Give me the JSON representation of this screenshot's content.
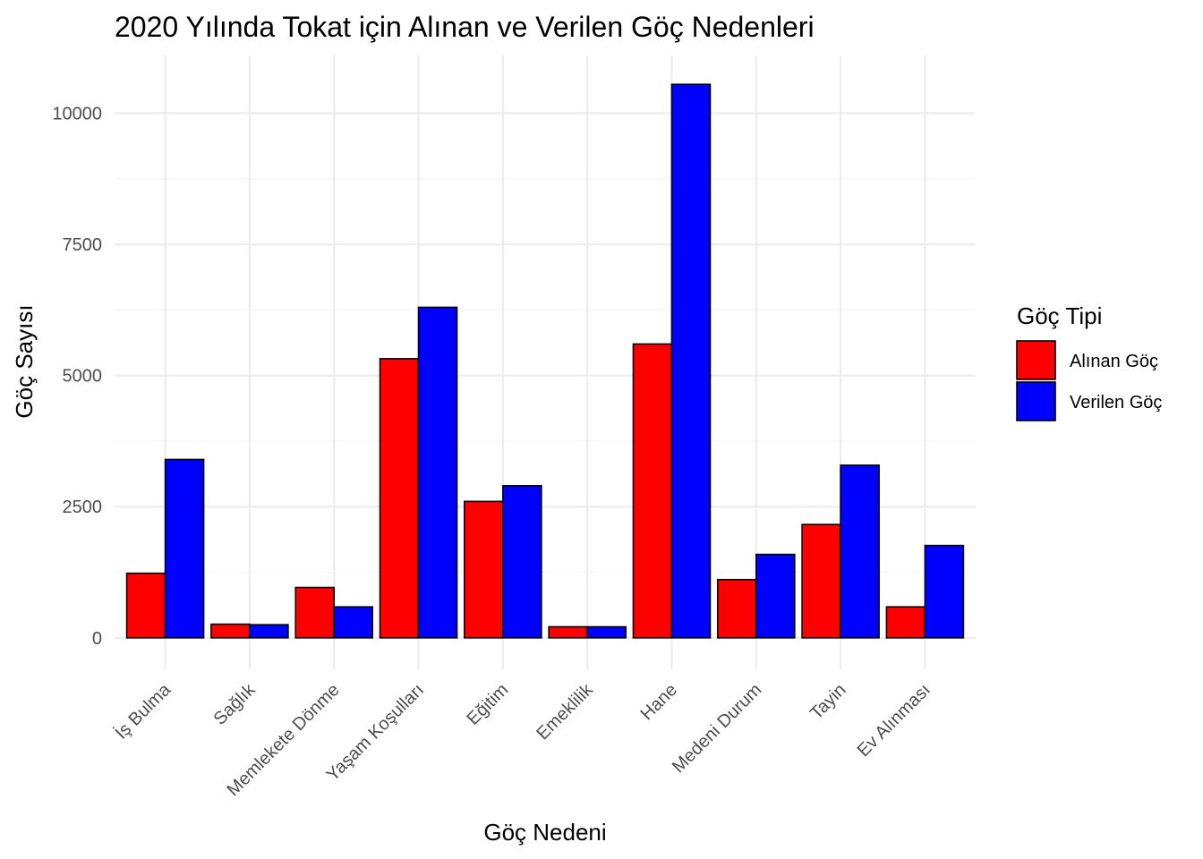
{
  "chart_data": {
    "type": "bar",
    "title": "2020 Yılında Tokat için Alınan ve Verilen Göç Nedenleri",
    "xlabel": "Göç Nedeni",
    "ylabel": "Göç Sayısı",
    "categories": [
      "İş Bulma",
      "Sağlık",
      "Memlekete Dönme",
      "Yaşam Koşulları",
      "Eğitim",
      "Emeklilik",
      "Hane",
      "Medeni Durum",
      "Tayin",
      "Ev Alınması"
    ],
    "series": [
      {
        "name": "Alınan Göç",
        "color": "#ff0000",
        "values": [
          1230,
          260,
          960,
          5320,
          2600,
          210,
          5600,
          1110,
          2160,
          590
        ]
      },
      {
        "name": "Verilen Göç",
        "color": "#0000ff",
        "values": [
          3400,
          250,
          590,
          6300,
          2900,
          210,
          10550,
          1590,
          3290,
          1760
        ]
      }
    ],
    "yticks": [
      0,
      2500,
      5000,
      7500,
      10000
    ],
    "ylim": [
      -600,
      11100
    ],
    "grid": true,
    "legend_title": "Göç Tipi",
    "legend_position": "right"
  }
}
